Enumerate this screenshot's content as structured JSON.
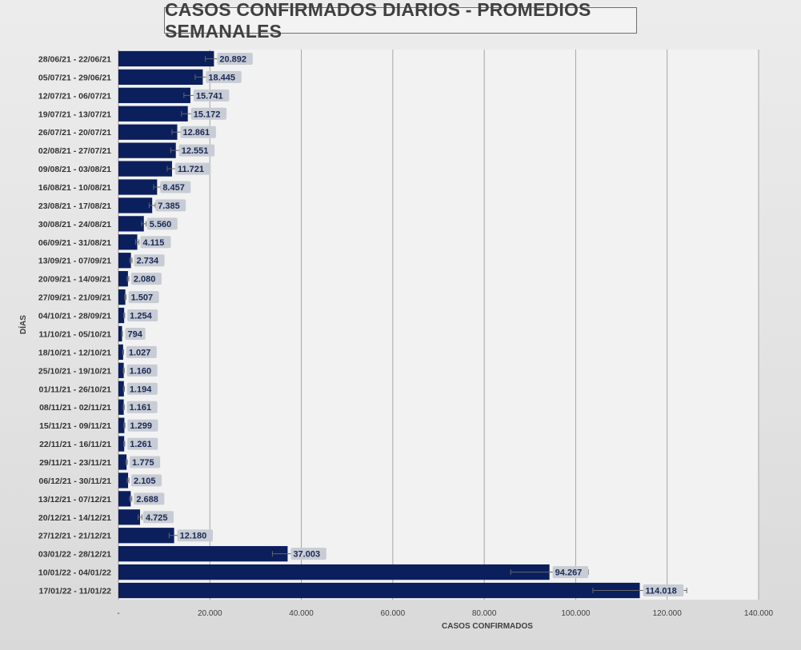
{
  "chart_data": {
    "type": "bar",
    "orientation": "horizontal",
    "title": "CASOS CONFIRMADOS DIARIOS - PROMEDIOS SEMANALES",
    "xlabel": "CASOS CONFIRMADOS",
    "ylabel": "DÍAS",
    "xlim": [
      0,
      140000
    ],
    "xticks": [
      "-",
      "20.000",
      "40.000",
      "60.000",
      "80.000",
      "100.000",
      "120.000",
      "140.000"
    ],
    "grid": "vertical",
    "error_bars": true,
    "bar_color": "#0b1f5c",
    "data_label_bg": "#c8ccd4",
    "data_label_color": "#1a2a55",
    "categories": [
      "28/06/21 - 22/06/21",
      "05/07/21 - 29/06/21",
      "12/07/21 - 06/07/21",
      "19/07/21 - 13/07/21",
      "26/07/21 - 20/07/21",
      "02/08/21 - 27/07/21",
      "09/08/21 - 03/08/21",
      "16/08/21 - 10/08/21",
      "23/08/21 - 17/08/21",
      "30/08/21 - 24/08/21",
      "06/09/21 - 31/08/21",
      "13/09/21 - 07/09/21",
      "20/09/21 - 14/09/21",
      "27/09/21 - 21/09/21",
      "04/10/21 - 28/09/21",
      "11/10/21 - 05/10/21",
      "18/10/21 - 12/10/21",
      "25/10/21 - 19/10/21",
      "01/11/21 - 26/10/21",
      "08/11/21 - 02/11/21",
      "15/11/21 - 09/11/21",
      "22/11/21 - 16/11/21",
      "29/11/21 - 23/11/21",
      "06/12/21 - 30/11/21",
      "13/12/21 - 07/12/21",
      "20/12/21 - 14/12/21",
      "27/12/21 - 21/12/21",
      "03/01/22 - 28/12/21",
      "10/01/22 - 04/01/22",
      "17/01/22 - 11/01/22"
    ],
    "values": [
      20892,
      18445,
      15741,
      15172,
      12861,
      12551,
      11721,
      8457,
      7385,
      5560,
      4115,
      2734,
      2080,
      1507,
      1254,
      794,
      1027,
      1160,
      1194,
      1161,
      1299,
      1261,
      1775,
      2105,
      2688,
      4725,
      12180,
      37003,
      94267,
      114018
    ],
    "value_labels": [
      "20.892",
      "18.445",
      "15.741",
      "15.172",
      "12.861",
      "12.551",
      "11.721",
      "8.457",
      "7.385",
      "5.560",
      "4.115",
      "2.734",
      "2.080",
      "1.507",
      "1.254",
      "794",
      "1.027",
      "1.160",
      "1.194",
      "1.161",
      "1.299",
      "1.261",
      "1.775",
      "2.105",
      "2.688",
      "4.725",
      "12.180",
      "37.003",
      "94.267",
      "114.018"
    ]
  }
}
